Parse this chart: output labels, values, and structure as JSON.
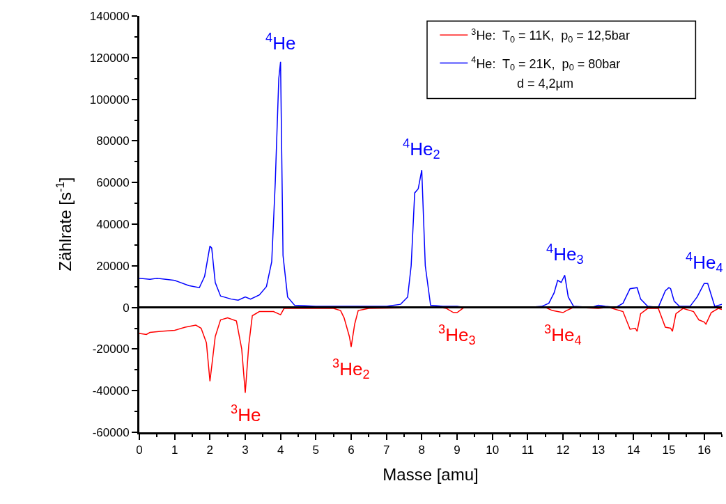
{
  "chart_data": {
    "type": "line",
    "xlabel": "Masse [amu]",
    "ylabel": "Zählrate [s$^{-1}$]",
    "xlim": [
      0,
      16.5
    ],
    "ylim": [
      -60000,
      140000
    ],
    "xticks": [
      0,
      1,
      2,
      3,
      4,
      5,
      6,
      7,
      8,
      9,
      10,
      11,
      12,
      13,
      14,
      15,
      16,
      {
        "value": 0.5,
        "label": null
      },
      {
        "value": 1.5,
        "label": null
      },
      {
        "value": 2.5,
        "label": null
      },
      {
        "value": 3.5,
        "label": null
      },
      {
        "value": 4.5,
        "label": null
      },
      {
        "value": 5.5,
        "label": null
      },
      {
        "value": 6.5,
        "label": null
      },
      {
        "value": 7.5,
        "label": null
      },
      {
        "value": 8.5,
        "label": null
      },
      {
        "value": 9.5,
        "label": null
      },
      {
        "value": 10.5,
        "label": null
      },
      {
        "value": 11.5,
        "label": null
      },
      {
        "value": 12.5,
        "label": null
      },
      {
        "value": 13.5,
        "label": null
      },
      {
        "value": 14.5,
        "label": null
      },
      {
        "value": 15.5,
        "label": null
      },
      {
        "value": 16.5,
        "label": null
      }
    ],
    "yticks": [
      -60000,
      -40000,
      -20000,
      0,
      20000,
      40000,
      60000,
      80000,
      100000,
      120000,
      140000,
      {
        "value": -50000,
        "label": null
      },
      {
        "value": -30000,
        "label": null
      },
      {
        "value": -10000,
        "label": null
      },
      {
        "value": 10000,
        "label": null
      },
      {
        "value": 30000,
        "label": null
      },
      {
        "value": 50000,
        "label": null
      },
      {
        "value": 70000,
        "label": null
      },
      {
        "value": 90000,
        "label": null
      },
      {
        "value": 110000,
        "label": null
      },
      {
        "value": 130000,
        "label": null
      }
    ],
    "grid": false,
    "ref_lines": [
      {
        "axis": "y",
        "value": 0,
        "color": "#000000"
      }
    ],
    "legend": "top right",
    "marker": "none",
    "line_style": "solid",
    "series": [
      {
        "name": "$^{3}$He:  T$_{0}$ = 11K,  p$_{0}$ = 12,5bar",
        "color": "#ff0000",
        "x": [
          0,
          0.2,
          0.3,
          0.6,
          1.0,
          1.3,
          1.6,
          1.75,
          1.9,
          2.0,
          2.15,
          2.3,
          2.5,
          2.75,
          2.9,
          3.0,
          3.1,
          3.2,
          3.4,
          3.8,
          4.0,
          4.1,
          5,
          5.5,
          5.7,
          5.8,
          5.95,
          6.0,
          6.1,
          6.2,
          6.5,
          8.5,
          8.7,
          8.9,
          9.0,
          9.2,
          11.5,
          11.7,
          12.0,
          12.1,
          12.3,
          13.0,
          13.3,
          13.7,
          13.9,
          14.05,
          14.1,
          14.2,
          14.4,
          14.7,
          14.9,
          15.05,
          15.1,
          15.2,
          15.4,
          15.7,
          15.85,
          16.0,
          16.05,
          16.2,
          16.4,
          16.5
        ],
        "values": [
          -12500,
          -13000,
          -12000,
          -11500,
          -11000,
          -9500,
          -8500,
          -10000,
          -17000,
          -35500,
          -14000,
          -6000,
          -5000,
          -6500,
          -20000,
          -41000,
          -18000,
          -4000,
          -2000,
          -2000,
          -3500,
          -500,
          -500,
          -500,
          -1500,
          -5000,
          -14000,
          -19000,
          -8000,
          -1500,
          -500,
          0,
          -500,
          -2500,
          -2500,
          0,
          0,
          -1500,
          -2500,
          -1500,
          0,
          -500,
          0,
          -2000,
          -10500,
          -10000,
          -11500,
          -3000,
          -500,
          -500,
          -9500,
          -10000,
          -11500,
          -3000,
          -500,
          -2000,
          -6000,
          -7000,
          -8000,
          -2500,
          -500,
          -1000
        ]
      },
      {
        "name": "$^{4}$He:  T$_{0}$ = 21K,  p$_{0}$ = 80bar",
        "color": "#0000ff",
        "x": [
          0,
          0.3,
          0.5,
          1.0,
          1.4,
          1.7,
          1.85,
          2.0,
          2.05,
          2.15,
          2.3,
          2.6,
          2.8,
          3.0,
          3.15,
          3.4,
          3.6,
          3.75,
          3.85,
          3.95,
          4.0,
          4.07,
          4.2,
          4.4,
          5,
          6,
          7,
          7.4,
          7.6,
          7.7,
          7.8,
          7.9,
          8.0,
          8.1,
          8.25,
          8.6,
          9,
          9.2,
          11,
          11.4,
          11.6,
          11.75,
          11.85,
          11.95,
          12.05,
          12.15,
          12.3,
          12.8,
          13,
          13.2,
          13.5,
          13.7,
          13.9,
          14.1,
          14.2,
          14.4,
          14.7,
          14.9,
          15.0,
          15.05,
          15.15,
          15.3,
          15.6,
          15.8,
          16.0,
          16.1,
          16.2,
          16.3,
          16.5
        ],
        "values": [
          14000,
          13500,
          14000,
          13000,
          10500,
          9500,
          15000,
          29500,
          28500,
          12000,
          5500,
          4000,
          3500,
          5000,
          4000,
          6000,
          10000,
          22000,
          60000,
          110000,
          118000,
          25000,
          5000,
          1000,
          500,
          500,
          500,
          1500,
          5000,
          20000,
          55000,
          57000,
          66000,
          20000,
          1000,
          500,
          500,
          0,
          0,
          500,
          2000,
          7000,
          13000,
          12000,
          15500,
          5000,
          500,
          0,
          1000,
          500,
          0,
          2000,
          9000,
          9500,
          4000,
          500,
          0,
          8000,
          9500,
          9000,
          3000,
          500,
          500,
          5000,
          11500,
          11500,
          6000,
          500,
          1500
        ]
      }
    ],
    "annotations": [
      {
        "text": "$^{4}$He",
        "x": 4,
        "y": 118000
      },
      {
        "text": "$^{4}$He$_{2}$",
        "x": 8,
        "y": 66000
      },
      {
        "text": "$^{4}$He$_{3}$",
        "x": 12.05,
        "y": 15500
      },
      {
        "text": "$^{4}$He$_{4}$",
        "x": 16,
        "y": 11500
      },
      {
        "text": "$^{3}$He",
        "x": 3,
        "y": -41000
      },
      {
        "text": "$^{3}$He$_{2}$",
        "x": 6,
        "y": -19000
      },
      {
        "text": "$^{3}$He$_{3}$",
        "x": 9,
        "y": -2500
      },
      {
        "text": "$^{3}$He$_{4}$",
        "x": 12,
        "y": -2500
      },
      "d = 4,2µm"
    ]
  }
}
